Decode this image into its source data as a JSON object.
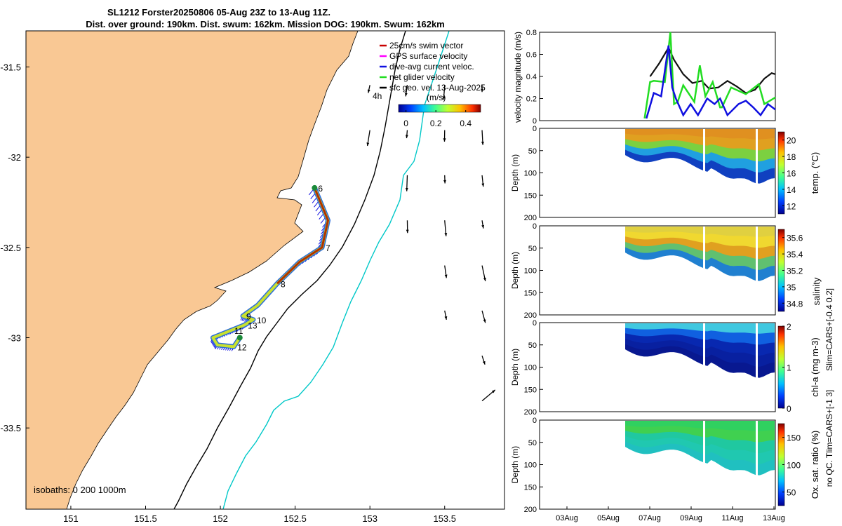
{
  "title": {
    "line1": "SL1212 Forster20250806 05-Aug 23Z to 13-Aug 11Z.",
    "line2": "Dist. over ground: 190km. Dist. swum: 162km. Mission DOG: 190km. Swum: 162km"
  },
  "colors": {
    "land": "#f9c894",
    "coast": "#000000",
    "isobath200": "#000000",
    "isobath1000": "#00c8c8",
    "track_red": "#c80000",
    "track_blue": "#1010e0",
    "track_green": "#22dd22",
    "sst_black": "#111111"
  },
  "chart_data": [
    {
      "id": "map",
      "type": "scatter",
      "title": "glider track map",
      "xlim": [
        150.7,
        153.9
      ],
      "ylim": [
        -33.95,
        -31.3
      ],
      "xticks": [
        151,
        151.5,
        152,
        152.5,
        153,
        153.5
      ],
      "xtick_labels": [
        "151",
        "151.5",
        "152",
        "152.5",
        "153",
        "153.5"
      ],
      "yticks": [
        -31.5,
        -32,
        -32.5,
        -33,
        -33.5
      ],
      "ytick_labels": [
        "-31.5",
        "-32",
        "-32.5",
        "-33",
        "-33.5"
      ],
      "legend": [
        {
          "label": "25cm/s swim vector",
          "color": "#c80000"
        },
        {
          "label": "GPS surface velocity",
          "color": "#ff00ff"
        },
        {
          "label": "dive-avg current veloc.",
          "color": "#1010e0"
        },
        {
          "label": "net glider velocity",
          "color": "#22dd22"
        },
        {
          "label": "sfc geo. vel. 13-Aug-2025",
          "color": "#000000"
        }
      ],
      "scale_label": "4h",
      "colorbar": {
        "label": "(m/s)",
        "ticks": [
          0,
          0.2,
          0.4
        ],
        "tick_labels": [
          "0",
          "0.2",
          "0.4"
        ],
        "range": [
          -0.05,
          0.5
        ]
      },
      "isobath_label": "isobaths: 0   200   1000m",
      "track": [
        {
          "lon": 152.63,
          "lat": -32.17,
          "day": "6"
        },
        {
          "lon": 152.72,
          "lat": -32.35
        },
        {
          "lon": 152.68,
          "lat": -32.5,
          "day": "7"
        },
        {
          "lon": 152.53,
          "lat": -32.58
        },
        {
          "lon": 152.38,
          "lat": -32.7,
          "day": "8"
        },
        {
          "lon": 152.25,
          "lat": -32.82
        },
        {
          "lon": 152.15,
          "lat": -32.88,
          "day": "9"
        },
        {
          "lon": 152.22,
          "lat": -32.9,
          "day": "10"
        },
        {
          "lon": 152.16,
          "lat": -32.93,
          "day": "13"
        },
        {
          "lon": 152.07,
          "lat": -32.96,
          "day": "11"
        },
        {
          "lon": 151.95,
          "lat": -33.0
        },
        {
          "lon": 151.98,
          "lat": -33.04
        },
        {
          "lon": 152.09,
          "lat": -33.05,
          "day": "12"
        },
        {
          "lon": 152.13,
          "lat": -33.0
        }
      ],
      "vector_grid": {
        "lon_start": 151.25,
        "lon_step": 0.25,
        "lat_start": -31.6,
        "lat_step": -0.25
      }
    },
    {
      "id": "velocity",
      "type": "line",
      "ylabel": "velocity magnitude (m/s)",
      "ylim": [
        0,
        0.8
      ],
      "yticks": [
        0,
        0.2,
        0.4,
        0.6,
        0.8
      ],
      "ytick_labels": [
        "0",
        "0.2",
        "0.4",
        "0.6",
        "0.8"
      ],
      "xlim": [
        0,
        12
      ],
      "series": [
        {
          "name": "surface geostrophic",
          "color": "#111111",
          "x": [
            5.8,
            6.3,
            6.8,
            7.1,
            7.6,
            8.1,
            8.6,
            9.0,
            9.5,
            10.0,
            10.5,
            11.0,
            11.5,
            12.0,
            12.4,
            12.6
          ],
          "y": [
            0.4,
            0.52,
            0.66,
            0.55,
            0.42,
            0.34,
            0.36,
            0.29,
            0.3,
            0.36,
            0.31,
            0.25,
            0.28,
            0.38,
            0.43,
            0.42
          ]
        },
        {
          "name": "net glider",
          "color": "#22dd22",
          "x": [
            5.5,
            5.8,
            6.0,
            6.6,
            6.9,
            7.1,
            7.3,
            7.6,
            8.2,
            8.5,
            8.8,
            9.2,
            9.6,
            9.7,
            10.2,
            11.0,
            11.7,
            12.0,
            12.3,
            12.6
          ],
          "y": [
            0.02,
            0.35,
            0.36,
            0.35,
            0.8,
            0.15,
            0.17,
            0.32,
            0.17,
            0.5,
            0.22,
            0.35,
            0.12,
            0.12,
            0.3,
            0.24,
            0.33,
            0.15,
            0.18,
            0.21
          ]
        },
        {
          "name": "dive-avg current",
          "color": "#1010e0",
          "x": [
            5.6,
            6.0,
            6.4,
            6.8,
            7.0,
            7.2,
            7.6,
            8.0,
            8.4,
            8.9,
            9.3,
            9.6,
            10.0,
            10.6,
            11.0,
            11.4,
            11.8,
            12.2,
            12.6
          ],
          "y": [
            0.02,
            0.25,
            0.22,
            0.68,
            0.3,
            0.2,
            0.05,
            0.15,
            0.05,
            0.2,
            0.15,
            0.2,
            0.05,
            0.15,
            0.18,
            0.12,
            0.05,
            0.15,
            0.1
          ]
        }
      ]
    },
    {
      "id": "temp",
      "type": "heatmap",
      "ylabel": "Depth (m)",
      "clabel": "temp. (°C)",
      "yticks": [
        0,
        50,
        100,
        150,
        200
      ],
      "ytick_labels": [
        "0",
        "50",
        "100",
        "150",
        "200"
      ],
      "ylim": [
        0,
        200
      ],
      "cticks": [
        12,
        14,
        16,
        18,
        20
      ],
      "ctick_labels": [
        "12",
        "14",
        "16",
        "18",
        "20"
      ],
      "clim": [
        11,
        21
      ],
      "surface_value": 19.2,
      "deep_value": 12.5
    },
    {
      "id": "salinity",
      "type": "heatmap",
      "ylabel": "Depth (m)",
      "clabel": "salinity",
      "yticks": [
        0,
        50,
        100,
        150,
        200
      ],
      "ytick_labels": [
        "0",
        "50",
        "100",
        "150",
        "200"
      ],
      "ylim": [
        0,
        200
      ],
      "cticks": [
        34.8,
        35,
        35.2,
        35.4,
        35.6
      ],
      "ctick_labels": [
        "34.8",
        "35",
        "35.2",
        "35.4",
        "35.6"
      ],
      "clim": [
        34.7,
        35.7
      ],
      "surface_value": 35.45,
      "deep_value": 35.15
    },
    {
      "id": "chla",
      "type": "heatmap",
      "ylabel": "Depth (m)",
      "clabel": "chl-a (mg m-3)",
      "yticks": [
        0,
        50,
        100,
        150,
        200
      ],
      "ytick_labels": [
        "0",
        "50",
        "100",
        "150",
        "200"
      ],
      "ylim": [
        0,
        200
      ],
      "cticks": [
        0,
        1,
        2
      ],
      "ctick_labels": [
        "0",
        "1",
        "2"
      ],
      "clim": [
        0,
        2
      ],
      "surface_value": 0.8,
      "deep_value": 0.1
    },
    {
      "id": "oxygen",
      "type": "heatmap",
      "ylabel": "Depth (m)",
      "clabel": "Ox. sat. ratio (%)",
      "yticks": [
        0,
        50,
        100,
        150,
        200
      ],
      "ytick_labels": [
        "0",
        "50",
        "100",
        "150",
        "200"
      ],
      "ylim": [
        0,
        200
      ],
      "cticks": [
        50,
        100,
        150
      ],
      "ctick_labels": [
        "50",
        "100",
        "150"
      ],
      "clim": [
        25,
        175
      ],
      "surface_value": 118,
      "deep_value": 100,
      "xtick_labels": [
        "03Aug",
        "05Aug",
        "07Aug",
        "09Aug",
        "11Aug",
        "13Aug"
      ]
    }
  ],
  "side_notes": {
    "salinity_lim": "Slim=CARS+[-0.4 0.2]",
    "temp_lim": "no QC. Tlim=CARS+[-1 3]"
  }
}
